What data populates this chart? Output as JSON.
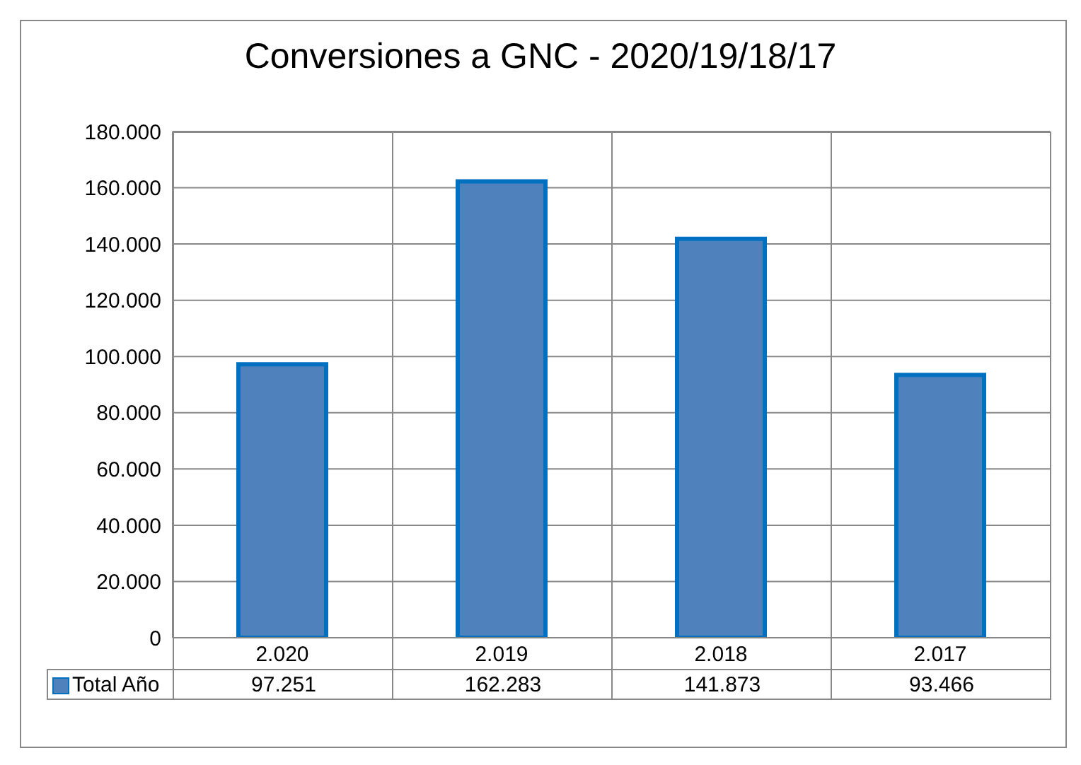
{
  "chart_data": {
    "type": "bar",
    "title": "Conversiones a GNC - 2020/19/18/17",
    "categories": [
      "2.020",
      "2.019",
      "2.018",
      "2.017"
    ],
    "series": [
      {
        "name": "Total Año",
        "color": "#4f81bd",
        "values": [
          97251,
          162283,
          141873,
          93466
        ],
        "value_labels": [
          "97.251",
          "162.283",
          "141.873",
          "93.466"
        ]
      }
    ],
    "ylim": [
      0,
      180000
    ],
    "yticks": [
      {
        "value": 0,
        "label": "0"
      },
      {
        "value": 20000,
        "label": "20.000"
      },
      {
        "value": 40000,
        "label": "40.000"
      },
      {
        "value": 60000,
        "label": "60.000"
      },
      {
        "value": 80000,
        "label": "80.000"
      },
      {
        "value": 100000,
        "label": "100.000"
      },
      {
        "value": 120000,
        "label": "120.000"
      },
      {
        "value": 140000,
        "label": "140.000"
      },
      {
        "value": 160000,
        "label": "160.000"
      },
      {
        "value": 180000,
        "label": "180.000"
      }
    ],
    "grid": true,
    "legend": "bottom left"
  }
}
